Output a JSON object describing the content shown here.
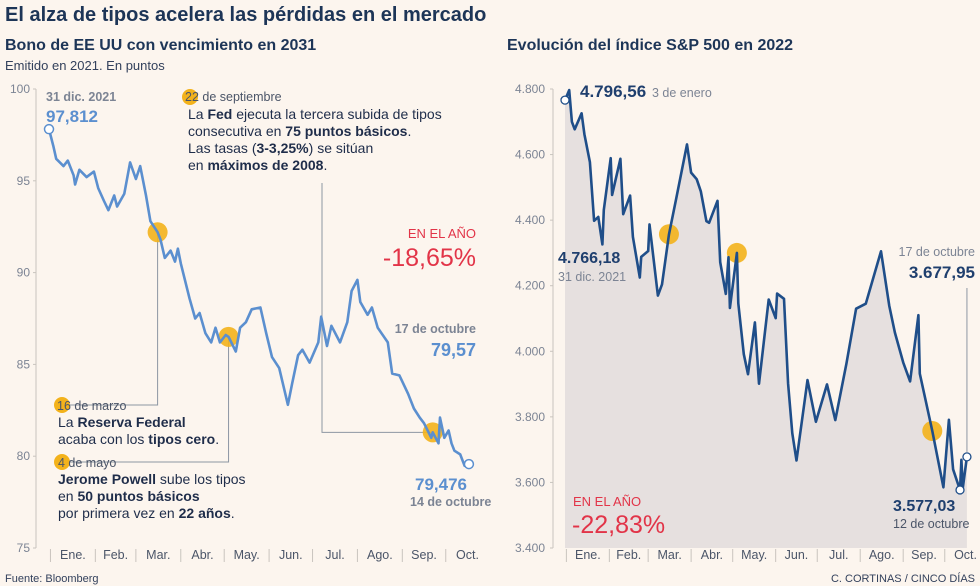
{
  "title": "El alza de tipos acelera las pérdidas en el mercado",
  "source": "Fuente: Bloomberg",
  "credit": "C. CORTINAS / CINCO DÍAS",
  "colors": {
    "background": "#fcf5ee",
    "bond_line": "#5b8fcf",
    "sp_line": "#1f4e89",
    "sp_fill": "#e6e0df",
    "marker": "#f3b21b",
    "red": "#e23448"
  },
  "chart_data": [
    {
      "type": "line",
      "title": "Bono de EE UU con vencimiento en 2031",
      "subtitle": "Emitido en 2021. En puntos",
      "ylim": [
        75,
        100
      ],
      "yticks": [
        "100",
        "95",
        "90",
        "85",
        "80",
        "75"
      ],
      "xtick_labels": [
        "Ene.",
        "Feb.",
        "Mar.",
        "Abr.",
        "May.",
        "Jun.",
        "Jul.",
        "Ago.",
        "Sep.",
        "Oct."
      ],
      "grid": false,
      "x": [
        "2021-12-31",
        "2022-01-03",
        "2022-01-05",
        "2022-01-10",
        "2022-01-13",
        "2022-01-17",
        "2022-01-18",
        "2022-01-21",
        "2022-01-26",
        "2022-01-31",
        "2022-02-03",
        "2022-02-07",
        "2022-02-10",
        "2022-02-14",
        "2022-02-16",
        "2022-02-21",
        "2022-02-25",
        "2022-03-01",
        "2022-03-04",
        "2022-03-08",
        "2022-03-11",
        "2022-03-16",
        "2022-03-18",
        "2022-03-21",
        "2022-03-25",
        "2022-03-28",
        "2022-03-30",
        "2022-04-01",
        "2022-04-07",
        "2022-04-11",
        "2022-04-14",
        "2022-04-18",
        "2022-04-22",
        "2022-04-25",
        "2022-04-28",
        "2022-05-02",
        "2022-05-04",
        "2022-05-09",
        "2022-05-12",
        "2022-05-16",
        "2022-05-20",
        "2022-05-26",
        "2022-05-30",
        "2022-06-03",
        "2022-06-08",
        "2022-06-14",
        "2022-06-17",
        "2022-06-21",
        "2022-06-24",
        "2022-06-29",
        "2022-07-05",
        "2022-07-07",
        "2022-07-11",
        "2022-07-14",
        "2022-07-20",
        "2022-07-25",
        "2022-07-28",
        "2022-08-01",
        "2022-08-03",
        "2022-08-08",
        "2022-08-11",
        "2022-08-15",
        "2022-08-22",
        "2022-08-25",
        "2022-08-30",
        "2022-09-05",
        "2022-09-09",
        "2022-09-13",
        "2022-09-16",
        "2022-09-21",
        "2022-09-22",
        "2022-09-26",
        "2022-09-27",
        "2022-09-30",
        "2022-10-03",
        "2022-10-05",
        "2022-10-07",
        "2022-10-11",
        "2022-10-14",
        "2022-10-17"
      ],
      "y": [
        97.812,
        96.9,
        96.2,
        95.8,
        96.1,
        95.3,
        94.8,
        95.6,
        95.2,
        95.5,
        94.6,
        93.9,
        93.4,
        94.2,
        93.6,
        94.3,
        96.0,
        95.1,
        95.8,
        94.2,
        92.8,
        92.2,
        91.8,
        90.8,
        91.2,
        90.6,
        91.3,
        90.5,
        88.6,
        87.5,
        87.8,
        86.7,
        86.2,
        87.0,
        86.2,
        86.6,
        86.5,
        85.7,
        87.0,
        87.3,
        88.0,
        88.1,
        86.7,
        85.4,
        84.8,
        82.8,
        84.0,
        85.5,
        85.8,
        85.1,
        86.2,
        87.6,
        86.0,
        87.1,
        86.2,
        87.3,
        89.0,
        89.6,
        88.4,
        87.7,
        88.1,
        87.0,
        86.2,
        84.5,
        84.4,
        83.4,
        82.6,
        82.1,
        81.8,
        81.0,
        81.3,
        80.7,
        82.1,
        81.0,
        81.4,
        80.7,
        80.3,
        80.1,
        79.476,
        79.57
      ],
      "events": [
        {
          "date": "2022-03-16",
          "value": 92.2
        },
        {
          "date": "2022-05-04",
          "value": 86.5
        },
        {
          "date": "2022-09-22",
          "value": 81.3
        }
      ],
      "labels": {
        "start_date": "31 dic. 2021",
        "start_value": "97,812",
        "ytd_label": "EN EL AÑO",
        "ytd_value": "-18,65%",
        "end_date": "17 de octubre",
        "end_value": "79,57",
        "low_value": "79,476",
        "low_date": "14 de octubre"
      },
      "annotations": {
        "sep22": {
          "date": "22 de septiembre",
          "lines": [
            [
              "La ",
              "Fed",
              " ejecuta la tercera subida de tipos"
            ],
            [
              "consecutiva en ",
              "75 puntos básicos",
              "."
            ],
            [
              "Las tasas (",
              "3-3,25%",
              ") se sitúan"
            ],
            [
              "en ",
              "máximos de 2008",
              "."
            ]
          ]
        },
        "mar16": {
          "date": "16 de marzo",
          "lines": [
            [
              "La ",
              "Reserva Federal",
              ""
            ],
            [
              "acaba con los ",
              "tipos cero",
              "."
            ]
          ]
        },
        "may4": {
          "date": "4 de mayo",
          "lines": [
            [
              "",
              "Jerome Powell",
              " sube los tipos"
            ],
            [
              "en ",
              "50 puntos básicos",
              ""
            ],
            [
              "por primera vez en ",
              "22 años",
              "."
            ]
          ]
        }
      }
    },
    {
      "type": "area",
      "title": "Evolución del índice S&P 500 en 2022",
      "ylim": [
        3400,
        4800
      ],
      "yticks": [
        "4.800",
        "4.600",
        "4.400",
        "4.200",
        "4.000",
        "3.800",
        "3.600",
        "3.400"
      ],
      "xtick_labels": [
        "Ene.",
        "Feb.",
        "Mar.",
        "Abr.",
        "May.",
        "Jun.",
        "Jul.",
        "Ago.",
        "Sep.",
        "Oct."
      ],
      "grid": false,
      "x": [
        "2021-12-31",
        "2022-01-03",
        "2022-01-05",
        "2022-01-07",
        "2022-01-12",
        "2022-01-14",
        "2022-01-18",
        "2022-01-21",
        "2022-01-24",
        "2022-01-27",
        "2022-01-28",
        "2022-02-02",
        "2022-02-03",
        "2022-02-09",
        "2022-02-11",
        "2022-02-16",
        "2022-02-18",
        "2022-02-23",
        "2022-02-24",
        "2022-03-01",
        "2022-03-02",
        "2022-03-08",
        "2022-03-11",
        "2022-03-16",
        "2022-03-21",
        "2022-03-29",
        "2022-04-01",
        "2022-04-05",
        "2022-04-08",
        "2022-04-12",
        "2022-04-14",
        "2022-04-20",
        "2022-04-22",
        "2022-04-26",
        "2022-04-28",
        "2022-04-29",
        "2022-05-04",
        "2022-05-05",
        "2022-05-09",
        "2022-05-12",
        "2022-05-17",
        "2022-05-20",
        "2022-05-27",
        "2022-06-01",
        "2022-06-02",
        "2022-06-07",
        "2022-06-10",
        "2022-06-13",
        "2022-06-16",
        "2022-06-24",
        "2022-06-30",
        "2022-07-08",
        "2022-07-14",
        "2022-07-22",
        "2022-07-29",
        "2022-08-05",
        "2022-08-16",
        "2022-08-22",
        "2022-08-26",
        "2022-09-01",
        "2022-09-06",
        "2022-09-12",
        "2022-09-13",
        "2022-09-16",
        "2022-09-22",
        "2022-09-30",
        "2022-10-04",
        "2022-10-07",
        "2022-10-12",
        "2022-10-13",
        "2022-10-14",
        "2022-10-17"
      ],
      "y": [
        4766.18,
        4796.56,
        4700,
        4677,
        4726,
        4662,
        4577,
        4398,
        4410,
        4326,
        4431,
        4589,
        4477,
        4587,
        4418,
        4475,
        4349,
        4225,
        4288,
        4306,
        4387,
        4170,
        4204,
        4357,
        4461,
        4631,
        4545,
        4525,
        4488,
        4397,
        4392,
        4459,
        4272,
        4175,
        4287,
        4132,
        4300,
        4146,
        3991,
        3930,
        4088,
        3901,
        4158,
        4101,
        4176,
        4160,
        3901,
        3750,
        3667,
        3912,
        3785,
        3899,
        3790,
        3962,
        4130,
        4145,
        4305,
        4138,
        4057,
        3966,
        3908,
        4110,
        3932,
        3873,
        3757,
        3585,
        3791,
        3640,
        3577.03,
        3669,
        3583,
        3677.95
      ],
      "events": [
        {
          "date": "2022-03-16",
          "value": 4357
        },
        {
          "date": "2022-05-04",
          "value": 4300
        },
        {
          "date": "2022-09-22",
          "value": 3757
        }
      ],
      "labels": {
        "high_value": "4.796,56",
        "high_date": "3 de enero",
        "start_value": "4.766,18",
        "start_date": "31 dic. 2021",
        "end_date": "17 de octubre",
        "end_value": "3.677,95",
        "ytd_label": "EN EL AÑO",
        "ytd_value": "-22,83%",
        "low_value": "3.577,03",
        "low_date": "12 de octubre"
      }
    }
  ]
}
